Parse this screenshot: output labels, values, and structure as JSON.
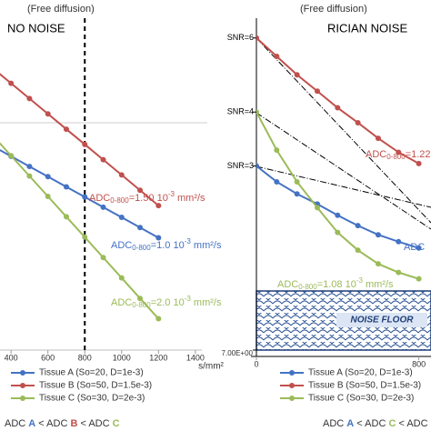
{
  "chart_data": [
    {
      "type": "line",
      "subtitle": "(Free diffusion)",
      "title": "NO NOISE",
      "x_label": "s/mm²",
      "x": [
        300,
        400,
        500,
        600,
        700,
        800,
        900,
        1000,
        1100,
        1200
      ],
      "xlim": [
        340,
        1450
      ],
      "xticks": [
        400,
        600,
        800,
        1000,
        1200,
        1400
      ],
      "ylim": [
        2,
        52
      ],
      "log_y": true,
      "vline": 800,
      "series": [
        {
          "name": "Tissue A (So=20, D=1e-3)",
          "color": "#4472c4",
          "values": [
            14.82,
            13.41,
            12.13,
            10.98,
            9.93,
            8.99,
            8.13,
            7.36,
            6.66,
            6.02
          ]
        },
        {
          "name": "Tissue B (So=50, D=1.5e-3)",
          "color": "#c0504d",
          "values": [
            31.88,
            27.44,
            23.62,
            20.33,
            17.49,
            15.06,
            12.96,
            11.16,
            9.6,
            8.26
          ]
        },
        {
          "name": "Tissue C (So=30, D=2e-3)",
          "color": "#9bbb59",
          "values": [
            16.46,
            13.48,
            11.04,
            9.04,
            7.4,
            6.06,
            4.96,
            4.06,
            3.32,
            2.72
          ]
        }
      ],
      "annotations": [
        {
          "color": "#c0504d",
          "a": "ADC",
          "sub": "0-800",
          "b": "=1.50 10",
          "sup": "-3",
          "c": " mm²/s"
        },
        {
          "color": "#4472c4",
          "a": "ADC",
          "sub": "0-800",
          "b": "=1.0 10",
          "sup": "-3",
          "c": " mm²/s"
        },
        {
          "color": "#9bbb59",
          "a": "ADC",
          "sub": "0-800",
          "b": "=2.0 10",
          "sup": "-3",
          "c": " mm²/s"
        }
      ],
      "comparison": [
        {
          "text": "ADC ",
          "color": "#333333"
        },
        {
          "text": "A",
          "color": "#4472c4"
        },
        {
          "text": " < ADC ",
          "color": "#333333"
        },
        {
          "text": "B",
          "color": "#c0504d"
        },
        {
          "text": " < ADC ",
          "color": "#333333"
        },
        {
          "text": "C",
          "color": "#9bbb59"
        }
      ]
    },
    {
      "type": "line",
      "subtitle": "(Free diffusion)",
      "title": "RICIAN NOISE",
      "x": [
        0,
        100,
        200,
        300,
        400,
        500,
        600,
        700,
        800
      ],
      "xlim": [
        0,
        860
      ],
      "xticks": [
        0,
        800
      ],
      "ylim": [
        7,
        177
      ],
      "log_y": true,
      "yticks": [
        {
          "value": 7,
          "label": "7.00E+00"
        }
      ],
      "snr_labels": [
        {
          "label": "SNR=6",
          "value": 146
        },
        {
          "label": "SNR=4",
          "value": 71
        },
        {
          "label": "SNR=3",
          "value": 42
        }
      ],
      "noise_floor_label": "NOISE FLOOR",
      "series": [
        {
          "name": "Tissue A (So=20, D=1e-3)",
          "color": "#4472c4",
          "values": [
            42,
            36,
            32,
            29,
            26,
            23.5,
            21.5,
            20.1,
            18.9
          ]
        },
        {
          "name": "Tissue B (So=50, D=1.5e-3)",
          "color": "#c0504d",
          "values": [
            146,
            122,
            102,
            87,
            74,
            64,
            55,
            48,
            43
          ]
        },
        {
          "name": "Tissue C (So=30, D=2e-3)",
          "color": "#9bbb59",
          "values": [
            71,
            49,
            36,
            28,
            22,
            18.5,
            16.2,
            14.9,
            14.0
          ]
        }
      ],
      "annotations": [
        {
          "color": "#c0504d",
          "a": "ADC",
          "sub": "0-800",
          "b": "=1.22"
        },
        {
          "color": "#4472c4",
          "a": "ADC"
        },
        {
          "color": "#9bbb59",
          "a": "ADC",
          "sub": "0-800",
          "b": "=1.08 10",
          "sup": "-3",
          "c": " mm²/s"
        }
      ],
      "comparison": [
        {
          "text": "ADC ",
          "color": "#333333"
        },
        {
          "text": "A",
          "color": "#4472c4"
        },
        {
          "text": " < ADC ",
          "color": "#333333"
        },
        {
          "text": "C",
          "color": "#9bbb59"
        },
        {
          "text": " < ADC",
          "color": "#333333"
        }
      ]
    }
  ]
}
